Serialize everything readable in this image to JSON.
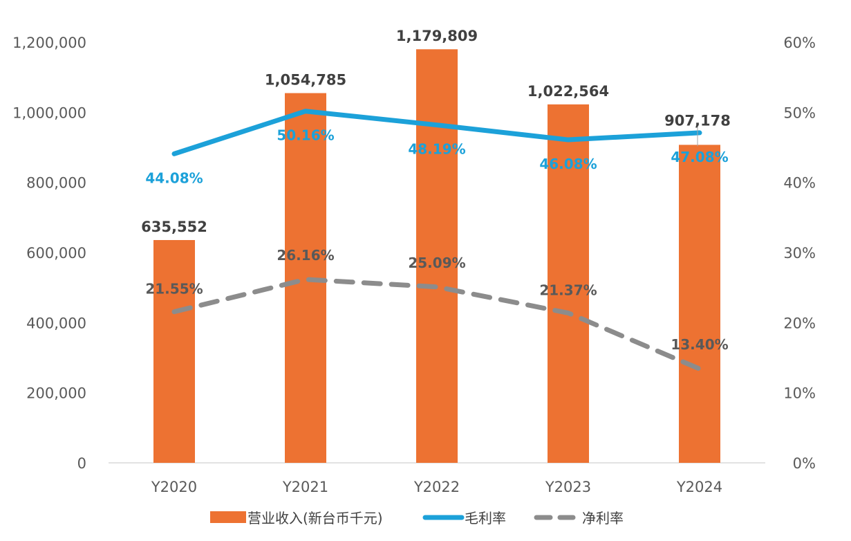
{
  "chart_data": {
    "type": "bar",
    "categories": [
      "Y2020",
      "Y2021",
      "Y2022",
      "Y2023",
      "Y2024"
    ],
    "series": [
      {
        "name": "营业收入(新台币千元)",
        "type": "bar",
        "axis": "left",
        "values": [
          635552,
          1054785,
          1179809,
          1022564,
          907178
        ],
        "labels": [
          "635,552",
          "1,054,785",
          "1,179,809",
          "1,022,564",
          "907,178"
        ],
        "color": "#ED7232"
      },
      {
        "name": "毛利率",
        "type": "line",
        "axis": "right",
        "values": [
          44.08,
          50.16,
          48.19,
          46.08,
          47.08
        ],
        "labels": [
          "44.08%",
          "50.16%",
          "48.19%",
          "46.08%",
          "47.08%"
        ],
        "color": "#1CA1D9",
        "style": "solid"
      },
      {
        "name": "净利率",
        "type": "line",
        "axis": "right",
        "values": [
          21.55,
          26.16,
          25.09,
          21.37,
          13.4
        ],
        "labels": [
          "21.55%",
          "26.16%",
          "25.09%",
          "21.37%",
          "13.40%"
        ],
        "color": "#8C8C8C",
        "style": "dashed"
      }
    ],
    "y_left": {
      "range": [
        0,
        1200000
      ],
      "ticks": [
        0,
        200000,
        400000,
        600000,
        800000,
        1000000,
        1200000
      ],
      "tick_labels": [
        "0",
        "200,000",
        "400,000",
        "600,000",
        "800,000",
        "1,000,000",
        "1,200,000"
      ]
    },
    "y_right": {
      "range": [
        0,
        60
      ],
      "ticks": [
        0,
        10,
        20,
        30,
        40,
        50,
        60
      ],
      "tick_labels": [
        "0%",
        "10%",
        "20%",
        "30%",
        "40%",
        "50%",
        "60%"
      ]
    },
    "grid": false,
    "legend_position": "bottom"
  }
}
